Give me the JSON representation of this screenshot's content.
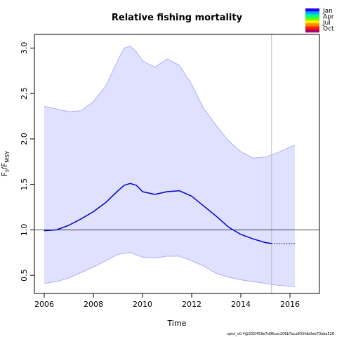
{
  "chart_data": {
    "type": "line",
    "title": "Relative fishing mortality",
    "xlabel": "Time",
    "ylabel": "F_t/F_MSY",
    "xlim": [
      2005.6,
      2017.2
    ],
    "ylim": [
      0.3,
      3.15
    ],
    "xticks": [
      "2006",
      "2008",
      "2010",
      "2012",
      "2014",
      "2016"
    ],
    "yticks": [
      "0.5",
      "1.0",
      "1.5",
      "2.0",
      "2.5",
      "3.0"
    ],
    "reference_line": 1.0,
    "vertical_line_x": 2015.25,
    "colors": {
      "band": "#e0e0ff",
      "band_edge": "#a0a0ff",
      "line": "#0000cc"
    },
    "series": [
      {
        "values": {
          "x": [
            2006.0,
            2006.5,
            2007.0,
            2007.5,
            2008.0,
            2008.5,
            2009.0,
            2009.25,
            2009.5,
            2009.75,
            2010.0,
            2010.5,
            2011.0,
            2011.5,
            2012.0,
            2012.5,
            2013.0,
            2013.5,
            2014.0,
            2014.5,
            2015.0,
            2015.25
          ],
          "y": [
            0.99,
            1.0,
            1.05,
            1.12,
            1.2,
            1.3,
            1.43,
            1.49,
            1.51,
            1.49,
            1.42,
            1.39,
            1.42,
            1.43,
            1.37,
            1.26,
            1.15,
            1.03,
            0.95,
            0.9,
            0.86,
            0.85
          ]
        },
        "projection": {
          "x": [
            2015.25,
            2016.2
          ],
          "y": [
            0.85,
            0.85
          ]
        },
        "upper": {
          "x": [
            2006.0,
            2006.5,
            2007.0,
            2007.5,
            2008.0,
            2008.5,
            2009.0,
            2009.25,
            2009.5,
            2009.75,
            2010.0,
            2010.5,
            2011.0,
            2011.5,
            2012.0,
            2012.5,
            2013.0,
            2013.5,
            2014.0,
            2014.5,
            2015.0,
            2015.5,
            2016.0,
            2016.2
          ],
          "y": [
            2.36,
            2.33,
            2.3,
            2.31,
            2.41,
            2.58,
            2.87,
            3.0,
            3.02,
            2.96,
            2.86,
            2.79,
            2.88,
            2.81,
            2.6,
            2.33,
            2.15,
            1.98,
            1.86,
            1.79,
            1.8,
            1.85,
            1.91,
            1.93
          ]
        },
        "lower": {
          "x": [
            2006.0,
            2006.5,
            2007.0,
            2007.5,
            2008.0,
            2008.5,
            2009.0,
            2009.5,
            2010.0,
            2010.5,
            2011.0,
            2011.5,
            2012.0,
            2012.5,
            2013.0,
            2013.5,
            2014.0,
            2014.5,
            2015.0,
            2015.5,
            2016.0,
            2016.2
          ],
          "y": [
            0.41,
            0.43,
            0.47,
            0.53,
            0.59,
            0.66,
            0.73,
            0.75,
            0.7,
            0.69,
            0.71,
            0.71,
            0.66,
            0.6,
            0.52,
            0.48,
            0.45,
            0.43,
            0.41,
            0.39,
            0.38,
            0.375
          ]
        }
      }
    ],
    "legend": {
      "position": "top-right",
      "labels": [
        "Jan",
        "Apr",
        "Jul",
        "Oct"
      ],
      "colors": [
        "#2200ff",
        "#00aaff",
        "#00ff88",
        "#66ff00",
        "#ffee00",
        "#ff8800",
        "#ff2200",
        "#aa0066"
      ]
    }
  },
  "footer_text": "spict_v0.4@332f459e7d96cec206b7aca803fdb0eb73eba526"
}
